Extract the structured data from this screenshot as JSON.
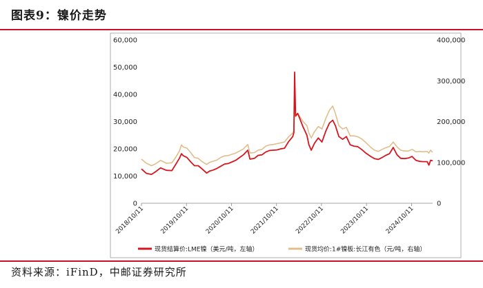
{
  "header": {
    "title": "图表9：镍价走势"
  },
  "source": {
    "text": "资料来源：iFinD，中邮证券研究所"
  },
  "chart_data": {
    "type": "line",
    "y_left": {
      "min": 0,
      "max": 60000,
      "ticks": [
        "0",
        "10,000",
        "20,000",
        "30,000",
        "40,000",
        "50,000",
        "60,000"
      ]
    },
    "y_right": {
      "min": 0,
      "max": 400000,
      "ticks": [
        "0",
        "100,000",
        "200,000",
        "300,000",
        "400,000"
      ]
    },
    "x": {
      "start": "2018-10-11",
      "end": "2025-03-31",
      "ticks": [
        "2018/10/11",
        "2019/10/11",
        "2020/10/11",
        "2021/10/11",
        "2022/10/11",
        "2023/10/11",
        "2024/10/11"
      ]
    },
    "legend_placement": "bottom",
    "series": [
      {
        "name": "现货结算价:LME镍（美元/吨，左轴）",
        "axis": "left",
        "color": "#d7141c",
        "points": [
          [
            "2018-10-11",
            12600
          ],
          [
            "2018-11-20",
            11000
          ],
          [
            "2018-12-31",
            10600
          ],
          [
            "2019-01-31",
            11500
          ],
          [
            "2019-03-15",
            13000
          ],
          [
            "2019-05-01",
            12100
          ],
          [
            "2019-06-15",
            12000
          ],
          [
            "2019-07-15",
            14200
          ],
          [
            "2019-08-15",
            16500
          ],
          [
            "2019-09-01",
            18200
          ],
          [
            "2019-09-15",
            17500
          ],
          [
            "2019-10-15",
            16800
          ],
          [
            "2019-11-15",
            15200
          ],
          [
            "2019-12-15",
            13800
          ],
          [
            "2020-01-15",
            13800
          ],
          [
            "2020-02-15",
            12600
          ],
          [
            "2020-03-23",
            11100
          ],
          [
            "2020-04-15",
            11800
          ],
          [
            "2020-05-15",
            12200
          ],
          [
            "2020-06-15",
            12800
          ],
          [
            "2020-07-15",
            13600
          ],
          [
            "2020-08-15",
            14400
          ],
          [
            "2020-09-15",
            14600
          ],
          [
            "2020-10-15",
            15200
          ],
          [
            "2020-11-15",
            15800
          ],
          [
            "2020-12-15",
            16800
          ],
          [
            "2021-01-15",
            17800
          ],
          [
            "2021-02-20",
            19500
          ],
          [
            "2021-03-10",
            16200
          ],
          [
            "2021-04-15",
            16500
          ],
          [
            "2021-05-15",
            17600
          ],
          [
            "2021-06-15",
            17800
          ],
          [
            "2021-07-15",
            18800
          ],
          [
            "2021-08-15",
            19400
          ],
          [
            "2021-09-15",
            19500
          ],
          [
            "2021-10-15",
            19600
          ],
          [
            "2021-11-15",
            20000
          ],
          [
            "2021-12-15",
            20200
          ],
          [
            "2022-01-15",
            22500
          ],
          [
            "2022-02-20",
            24500
          ],
          [
            "2022-03-01",
            26000
          ],
          [
            "2022-03-07",
            48200
          ],
          [
            "2022-03-15",
            32000
          ],
          [
            "2022-04-01",
            33000
          ],
          [
            "2022-04-15",
            31500
          ],
          [
            "2022-05-15",
            28000
          ],
          [
            "2022-06-15",
            25000
          ],
          [
            "2022-07-01",
            21500
          ],
          [
            "2022-07-20",
            19500
          ],
          [
            "2022-08-15",
            22000
          ],
          [
            "2022-09-15",
            24000
          ],
          [
            "2022-10-15",
            22500
          ],
          [
            "2022-11-15",
            26500
          ],
          [
            "2022-12-15",
            29500
          ],
          [
            "2023-01-10",
            30500
          ],
          [
            "2023-02-01",
            28500
          ],
          [
            "2023-03-01",
            24500
          ],
          [
            "2023-04-01",
            23500
          ],
          [
            "2023-05-01",
            24500
          ],
          [
            "2023-06-01",
            21500
          ],
          [
            "2023-07-01",
            21000
          ],
          [
            "2023-08-01",
            20800
          ],
          [
            "2023-09-01",
            19800
          ],
          [
            "2023-10-01",
            18600
          ],
          [
            "2023-11-15",
            17200
          ],
          [
            "2023-12-15",
            16400
          ],
          [
            "2024-01-15",
            16100
          ],
          [
            "2024-02-15",
            16800
          ],
          [
            "2024-03-15",
            17600
          ],
          [
            "2024-04-15",
            18200
          ],
          [
            "2024-05-15",
            20500
          ],
          [
            "2024-06-15",
            17800
          ],
          [
            "2024-07-15",
            16500
          ],
          [
            "2024-08-15",
            16400
          ],
          [
            "2024-09-15",
            16600
          ],
          [
            "2024-10-15",
            17200
          ],
          [
            "2024-11-15",
            15800
          ],
          [
            "2024-12-15",
            15400
          ],
          [
            "2025-01-15",
            15300
          ],
          [
            "2025-02-15",
            15300
          ],
          [
            "2025-03-01",
            14000
          ],
          [
            "2025-03-15",
            15800
          ],
          [
            "2025-03-31",
            15600
          ]
        ]
      },
      {
        "name": "现货均价:1#镍板:长江有色（元/吨，右轴）",
        "axis": "right",
        "color": "#e2bd8b",
        "points": [
          [
            "2018-10-11",
            108000
          ],
          [
            "2018-11-20",
            98000
          ],
          [
            "2018-12-31",
            92000
          ],
          [
            "2019-01-31",
            96000
          ],
          [
            "2019-03-15",
            105000
          ],
          [
            "2019-05-01",
            98000
          ],
          [
            "2019-06-15",
            99000
          ],
          [
            "2019-07-15",
            112000
          ],
          [
            "2019-08-15",
            128000
          ],
          [
            "2019-09-01",
            143000
          ],
          [
            "2019-09-15",
            138000
          ],
          [
            "2019-10-15",
            135000
          ],
          [
            "2019-11-15",
            124000
          ],
          [
            "2019-12-15",
            112000
          ],
          [
            "2020-01-15",
            110000
          ],
          [
            "2020-02-15",
            102000
          ],
          [
            "2020-03-23",
            95000
          ],
          [
            "2020-04-15",
            100000
          ],
          [
            "2020-05-15",
            103000
          ],
          [
            "2020-06-15",
            106000
          ],
          [
            "2020-07-15",
            112000
          ],
          [
            "2020-08-15",
            116000
          ],
          [
            "2020-09-15",
            117000
          ],
          [
            "2020-10-15",
            120000
          ],
          [
            "2020-11-15",
            123000
          ],
          [
            "2020-12-15",
            128000
          ],
          [
            "2021-01-15",
            133000
          ],
          [
            "2021-02-20",
            144000
          ],
          [
            "2021-03-10",
            123000
          ],
          [
            "2021-04-15",
            124000
          ],
          [
            "2021-05-15",
            130000
          ],
          [
            "2021-06-15",
            132000
          ],
          [
            "2021-07-15",
            140000
          ],
          [
            "2021-08-15",
            143000
          ],
          [
            "2021-09-15",
            144000
          ],
          [
            "2021-10-15",
            146000
          ],
          [
            "2021-11-15",
            148000
          ],
          [
            "2021-12-15",
            150000
          ],
          [
            "2022-01-15",
            162000
          ],
          [
            "2022-02-20",
            172000
          ],
          [
            "2022-03-01",
            178000
          ],
          [
            "2022-03-07",
            258000
          ],
          [
            "2022-03-15",
            215000
          ],
          [
            "2022-04-01",
            220000
          ],
          [
            "2022-04-15",
            214000
          ],
          [
            "2022-05-15",
            200000
          ],
          [
            "2022-06-15",
            190000
          ],
          [
            "2022-07-01",
            172000
          ],
          [
            "2022-07-20",
            160000
          ],
          [
            "2022-08-15",
            175000
          ],
          [
            "2022-09-15",
            188000
          ],
          [
            "2022-10-15",
            182000
          ],
          [
            "2022-11-15",
            208000
          ],
          [
            "2022-12-15",
            228000
          ],
          [
            "2023-01-10",
            238000
          ],
          [
            "2023-02-01",
            220000
          ],
          [
            "2023-03-01",
            190000
          ],
          [
            "2023-04-01",
            182000
          ],
          [
            "2023-05-01",
            186000
          ],
          [
            "2023-06-01",
            165000
          ],
          [
            "2023-07-01",
            165000
          ],
          [
            "2023-08-01",
            163000
          ],
          [
            "2023-09-01",
            158000
          ],
          [
            "2023-10-01",
            150000
          ],
          [
            "2023-11-15",
            137000
          ],
          [
            "2023-12-15",
            130000
          ],
          [
            "2024-01-15",
            127000
          ],
          [
            "2024-02-15",
            132000
          ],
          [
            "2024-03-15",
            136000
          ],
          [
            "2024-04-15",
            139000
          ],
          [
            "2024-05-15",
            150000
          ],
          [
            "2024-06-15",
            138000
          ],
          [
            "2024-07-15",
            130000
          ],
          [
            "2024-08-15",
            128000
          ],
          [
            "2024-09-15",
            128000
          ],
          [
            "2024-10-15",
            132000
          ],
          [
            "2024-11-15",
            126000
          ],
          [
            "2024-12-15",
            127000
          ],
          [
            "2025-01-15",
            126000
          ],
          [
            "2025-02-15",
            127000
          ],
          [
            "2025-03-01",
            123000
          ],
          [
            "2025-03-15",
            130000
          ],
          [
            "2025-03-31",
            125000
          ]
        ]
      }
    ]
  }
}
